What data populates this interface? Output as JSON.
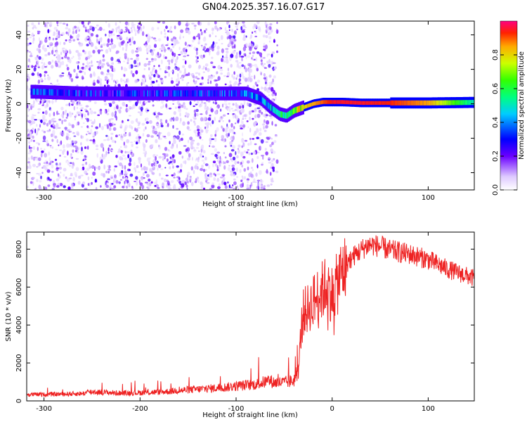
{
  "title": "GN04.2025.357.16.07.G17",
  "chart_data": [
    {
      "type": "heatmap",
      "name": "spectrogram",
      "xlabel": "Height of straight line (km)",
      "ylabel": "Frequency (Hz)",
      "xlim": [
        -318,
        148
      ],
      "ylim": [
        -50,
        48
      ],
      "xticks": [
        -300,
        -200,
        -100,
        0,
        100
      ],
      "yticks": [
        -40,
        -20,
        0,
        20,
        40
      ],
      "colorbar": {
        "label": "Normalized spectral amplitude",
        "range": [
          0.0,
          1.0
        ],
        "ticks": [
          0.0,
          0.2,
          0.4,
          0.6,
          0.8
        ]
      },
      "signal_track": {
        "x": [
          -310,
          -260,
          -200,
          -150,
          -110,
          -90,
          -75,
          -65,
          -55,
          -48,
          -40,
          -30,
          -20,
          -10,
          0,
          10,
          30,
          60,
          100,
          148
        ],
        "frequency": [
          7,
          6,
          6,
          6,
          6,
          6,
          3,
          -2,
          -6,
          -7,
          -4,
          -2,
          0,
          1,
          1,
          1,
          0.5,
          0.5,
          0.5,
          0.8
        ],
        "amplitude": [
          0.3,
          0.3,
          0.28,
          0.3,
          0.3,
          0.35,
          0.4,
          0.45,
          0.5,
          0.55,
          0.7,
          0.8,
          0.85,
          0.9,
          0.95,
          0.95,
          0.95,
          0.93,
          0.85,
          0.5
        ]
      },
      "noise_region_x": [
        -318,
        -57
      ]
    },
    {
      "type": "line",
      "name": "snr",
      "xlabel": "Height of straight line (km)",
      "ylabel": "SNR (10 * v/v)",
      "xlim": [
        -318,
        148
      ],
      "ylim": [
        0,
        8900
      ],
      "xticks": [
        -300,
        -200,
        -100,
        0,
        100
      ],
      "yticks": [
        0,
        2000,
        4000,
        6000,
        8000
      ],
      "series": [
        {
          "name": "SNR",
          "color": "#ee2222",
          "x": [
            -318,
            -300,
            -260,
            -250,
            -220,
            -180,
            -150,
            -120,
            -100,
            -80,
            -65,
            -60,
            -50,
            -40,
            -35,
            -32,
            -30,
            -25,
            -20,
            -15,
            -10,
            -5,
            0,
            5,
            10,
            20,
            30,
            35,
            40,
            50,
            60,
            80,
            100,
            120,
            148
          ],
          "y": [
            350,
            350,
            400,
            500,
            420,
            480,
            600,
            700,
            800,
            900,
            1100,
            1000,
            1000,
            1100,
            1800,
            4000,
            4800,
            5000,
            5400,
            5700,
            6000,
            6300,
            5800,
            6300,
            7000,
            7600,
            8000,
            8200,
            8300,
            8200,
            8000,
            7800,
            7500,
            7000,
            6500
          ]
        }
      ]
    }
  ]
}
